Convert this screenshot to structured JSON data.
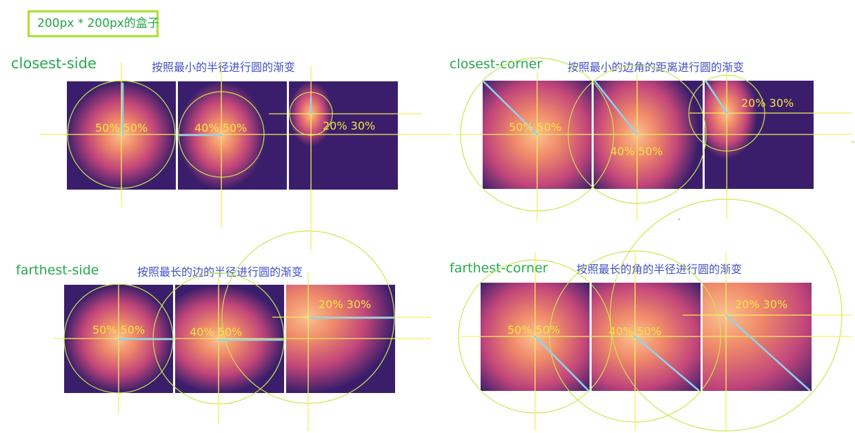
{
  "badge": "200px * 200px的盒子",
  "sections": {
    "closest_side": {
      "title": "closest-side",
      "desc": "按照最小的半径进行圆的渐变"
    },
    "closest_corner": {
      "title": "closest-corner",
      "desc": "按照最小的边角的距离进行圆的渐变"
    },
    "farthest_side": {
      "title": "farthest-side",
      "desc": "按照最长的边的半径进行圆的渐变"
    },
    "farthest_corner": {
      "title": "farthest-corner",
      "desc": "按照最长的角的半径进行圆的渐变"
    }
  },
  "positions": [
    "50% 50%",
    "40% 50%",
    "20% 30%"
  ],
  "colors": {
    "box_bg": "#3b1e6b",
    "gradient_center": "#fbc190",
    "guide_line": "#f2f05a",
    "guide_circle": "#c9e84e",
    "radius_line": "#8fd3ee",
    "title": "#26a94e",
    "desc": "#4150c8",
    "badge_border": "#a6e22e"
  }
}
